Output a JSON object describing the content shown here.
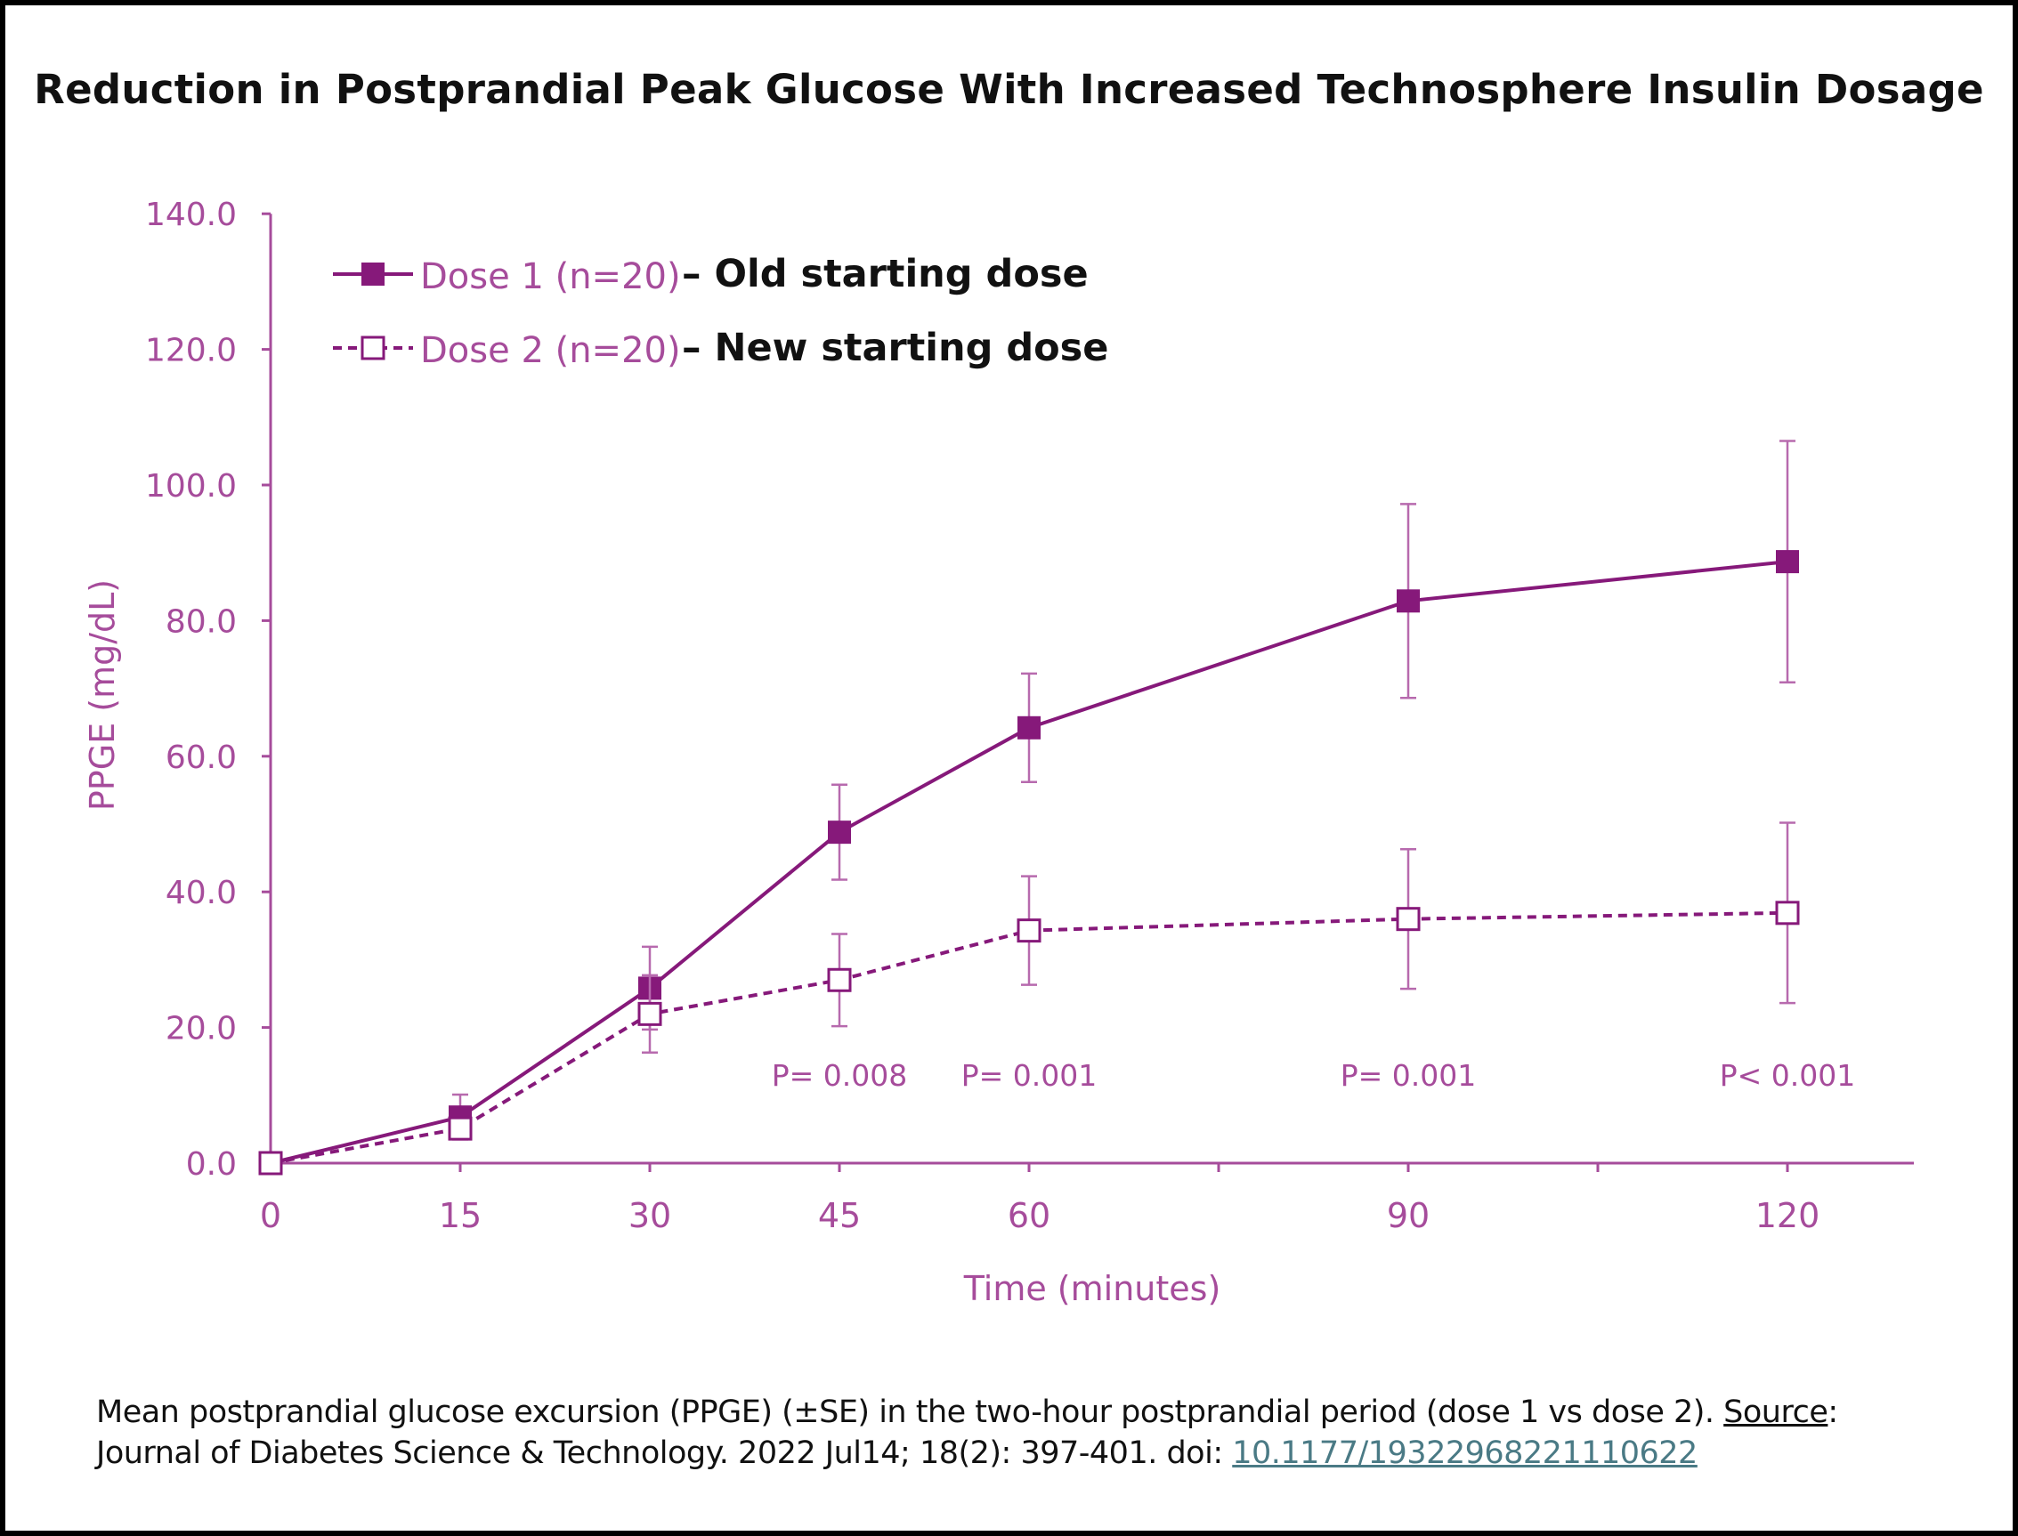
{
  "title": "Reduction in Postprandial Peak Glucose With Increased Technosphere Insulin Dosage",
  "colors": {
    "series": "#86197a",
    "axis": "#a64c9b",
    "text": "#111111",
    "link": "#4a7a85"
  },
  "chart_data": {
    "type": "line",
    "x": [
      0,
      15,
      30,
      45,
      60,
      90,
      120
    ],
    "xlabel": "Time (minutes)",
    "ylabel": "PPGE (mg/dL)",
    "xlim": [
      0,
      130
    ],
    "ylim": [
      0,
      140
    ],
    "xticks": [
      0,
      15,
      30,
      45,
      60,
      90,
      120
    ],
    "xminor_ticks": [
      75,
      105
    ],
    "yticks": [
      "0.0",
      "20.0",
      "40.0",
      "60.0",
      "80.0",
      "100.0",
      "120.0",
      "140.0"
    ],
    "grid": false,
    "legend_position": "top-left",
    "error_bars": "±SE",
    "series": [
      {
        "name": "Dose 1 (n=20)",
        "note": "– Old starting dose",
        "style": "solid",
        "marker": "filled-square",
        "values": [
          0,
          6.8,
          25.8,
          48.8,
          64.2,
          82.9,
          88.7
        ],
        "se": [
          0,
          3.3,
          6.1,
          7.0,
          8.0,
          14.3,
          17.8
        ]
      },
      {
        "name": "Dose 2 (n=20)",
        "note": "– New starting dose",
        "style": "dashed",
        "marker": "open-square",
        "values": [
          0,
          5.1,
          22.0,
          27.0,
          34.3,
          36.0,
          36.9
        ],
        "se": [
          0,
          1.5,
          5.7,
          6.8,
          8.0,
          10.3,
          13.3
        ]
      }
    ],
    "annotations": [
      {
        "x": 45,
        "text": "P= 0.008"
      },
      {
        "x": 60,
        "text": "P= 0.001"
      },
      {
        "x": 90,
        "text": "P= 0.001"
      },
      {
        "x": 120,
        "text": "P< 0.001"
      }
    ]
  },
  "caption": {
    "text1": "Mean postprandial glucose excursion (PPGE) (±SE) in the two-hour postprandial period (dose 1 vs dose 2). ",
    "source_label": "Source",
    "text2": ":",
    "text3": "Journal of Diabetes Science & Technology. 2022 Jul14; 18(2): 397-401. doi:  ",
    "doi": "10.1177/19322968221110622"
  }
}
